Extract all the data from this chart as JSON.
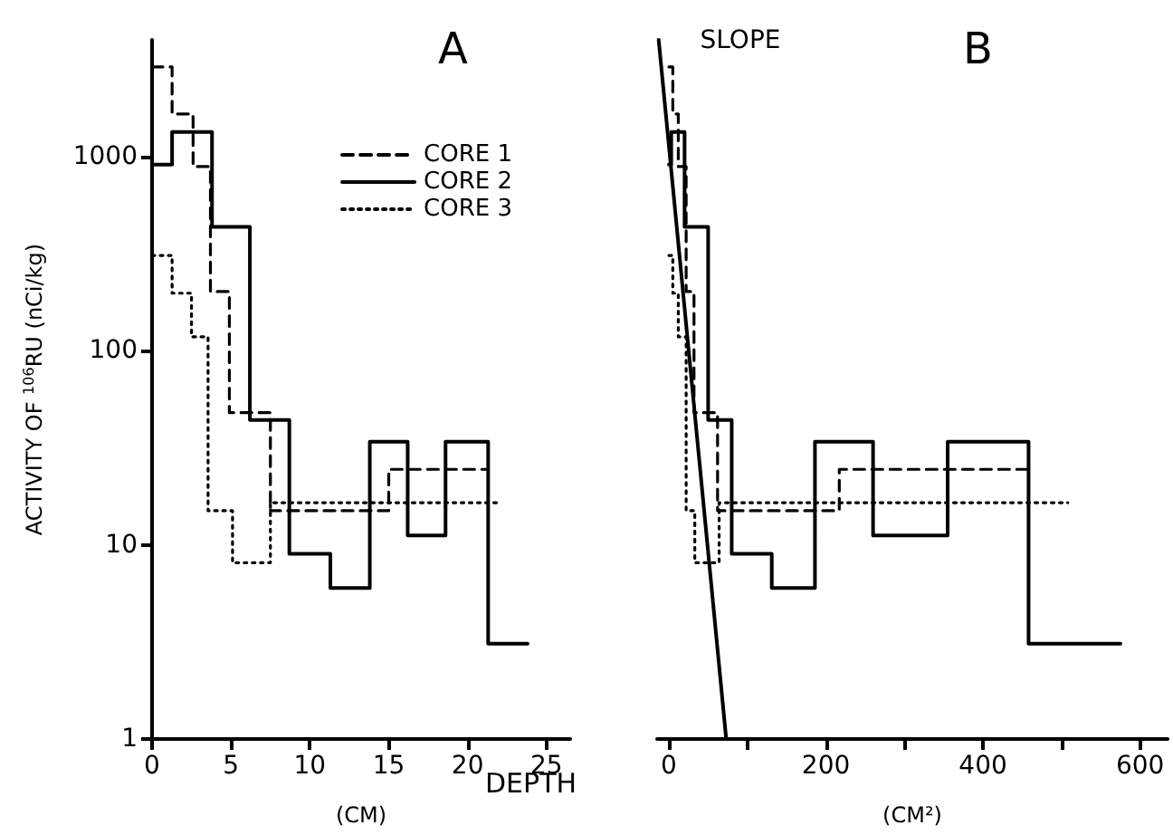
{
  "chart_data": [
    {
      "type": "step",
      "title": "A",
      "xlabel": "(CM)",
      "ylabel": "ACTIVITY OF $^{106}$RU (nCi/kg)",
      "log": "y",
      "grid": false,
      "legend": "top right",
      "xlim": [
        0,
        26.5
      ],
      "xticks": [
        0,
        5,
        10,
        15,
        20,
        25
      ],
      "ylim": [
        1,
        4000
      ],
      "yticks": [
        1,
        10,
        100,
        1000
      ],
      "annotations": [
        "DEPTH"
      ],
      "series": [
        {
          "name": "CORE 1",
          "color": "#000000",
          "line_style": "dashed",
          "x": [
            0,
            1.27,
            2.6,
            3.7,
            4.9,
            7.5,
            15,
            21.3
          ],
          "values": [
            2900,
            1660,
            890,
            202,
            48,
            15,
            24.5,
            24.5
          ]
        },
        {
          "name": "CORE 2",
          "color": "#000000",
          "line_style": "solid",
          "x": [
            0,
            1.27,
            3.8,
            6.2,
            8.7,
            11.3,
            13.8,
            16.2,
            18.6,
            21.3,
            23.8
          ],
          "values": [
            910,
            1340,
            435,
            44,
            9,
            6,
            34,
            11.2,
            34,
            3.1,
            3.1
          ]
        },
        {
          "name": "CORE 3",
          "color": "#000000",
          "line_style": "dotted",
          "x": [
            0,
            1.27,
            2.5,
            3.55,
            5.1,
            7.5,
            22.1
          ],
          "values": [
            310,
            198,
            118,
            15,
            8.1,
            16.5,
            16.5
          ]
        }
      ]
    },
    {
      "type": "step",
      "title": "B",
      "xlabel": "(CM²)",
      "log": "y",
      "grid": false,
      "legend": false,
      "tick_labels": "x",
      "xlim": [
        -15,
        635
      ],
      "xticks": [
        0,
        {
          "value": 100,
          "label": null
        },
        200,
        {
          "value": 300,
          "label": null
        },
        400,
        {
          "value": 500,
          "label": null
        },
        600
      ],
      "yticks": [
        1,
        10,
        100,
        1000
      ],
      "annotations": [
        {
          "text": "SLOPE",
          "x": -11,
          "y": 3400
        }
      ],
      "series": [
        {
          "color": "#000000",
          "line_style": "dashed",
          "x": [
            0,
            5,
            12,
            22,
            32,
            62,
            217,
            456
          ],
          "values": [
            2900,
            1660,
            890,
            202,
            48,
            15,
            24.5,
            24.5
          ]
        },
        {
          "color": "#000000",
          "line_style": "solid",
          "x": [
            0,
            3,
            20,
            50,
            80,
            131,
            186,
            260,
            355,
            458,
            575
          ],
          "values": [
            910,
            1340,
            435,
            44,
            9,
            6,
            34,
            11.2,
            34,
            3.1,
            3.1
          ]
        },
        {
          "color": "#000000",
          "line_style": "dotted",
          "x": [
            0,
            5,
            12,
            22,
            33,
            64,
            508
          ],
          "values": [
            310,
            198,
            118,
            15,
            8.1,
            16.5,
            16.5
          ]
        },
        {
          "type": "line",
          "color": "#000000",
          "line_style": "solid",
          "x": [
            -13,
            73
          ],
          "values": [
            4000,
            1
          ]
        }
      ]
    }
  ]
}
